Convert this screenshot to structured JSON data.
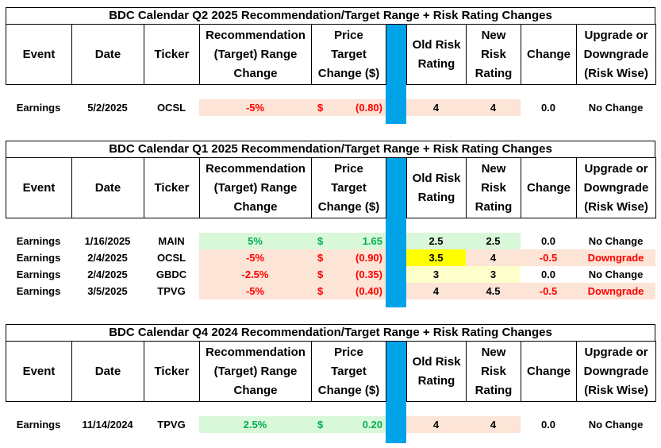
{
  "headers": {
    "event": "Event",
    "date": "Date",
    "ticker": "Ticker",
    "recommendation": [
      "Recommendation",
      "(Target) Range",
      "Change"
    ],
    "price_target": [
      "Price",
      "Target",
      "Change ($)"
    ],
    "old_risk": [
      "Old Risk",
      "Rating"
    ],
    "new_risk": [
      "New",
      "Risk",
      "Rating"
    ],
    "change": "Change",
    "upgrade": [
      "Upgrade or",
      "Downgrade",
      "(Risk Wise)"
    ]
  },
  "sections": [
    {
      "title": "BDC Calendar Q2 2025 Recommendation/Target Range + Risk Rating Changes",
      "rows": [
        {
          "event": "Earnings",
          "date": "5/2/2025",
          "ticker": "OCSL",
          "rec": "-5%",
          "currency": "$",
          "price": "(0.80)",
          "old": "4",
          "new": "4",
          "change": "0.0",
          "upgrade": "No Change"
        }
      ]
    },
    {
      "title": "BDC Calendar Q1 2025 Recommendation/Target Range + Risk Rating Changes",
      "rows": [
        {
          "event": "Earnings",
          "date": "1/16/2025",
          "ticker": "MAIN",
          "rec": "5%",
          "currency": "$",
          "price": "1.65",
          "old": "2.5",
          "new": "2.5",
          "change": "0.0",
          "upgrade": "No Change"
        },
        {
          "event": "Earnings",
          "date": "2/4/2025",
          "ticker": "OCSL",
          "rec": "-5%",
          "currency": "$",
          "price": "(0.90)",
          "old": "3.5",
          "new": "4",
          "change": "-0.5",
          "upgrade": "Downgrade"
        },
        {
          "event": "Earnings",
          "date": "2/4/2025",
          "ticker": "GBDC",
          "rec": "-2.5%",
          "currency": "$",
          "price": "(0.35)",
          "old": "3",
          "new": "3",
          "change": "0.0",
          "upgrade": "No Change"
        },
        {
          "event": "Earnings",
          "date": "3/5/2025",
          "ticker": "TPVG",
          "rec": "-5%",
          "currency": "$",
          "price": "(0.40)",
          "old": "4",
          "new": "4.5",
          "change": "-0.5",
          "upgrade": "Downgrade"
        }
      ]
    },
    {
      "title": "BDC Calendar Q4 2024 Recommendation/Target Range + Risk Rating Changes",
      "rows": [
        {
          "event": "Earnings",
          "date": "11/14/2024",
          "ticker": "TPVG",
          "rec": "2.5%",
          "currency": "$",
          "price": "0.20",
          "old": "4",
          "new": "4",
          "change": "0.0",
          "upgrade": "No Change"
        }
      ]
    }
  ],
  "colors": {
    "blue_separator": "#00a2e8",
    "negative_text": "#ff0000",
    "positive_text": "#00b050",
    "negative_fill": "#fce4d6",
    "positive_fill": "#d9f7d9",
    "highlight_yellow": "#ffff00",
    "light_yellow": "#ffffcc"
  }
}
